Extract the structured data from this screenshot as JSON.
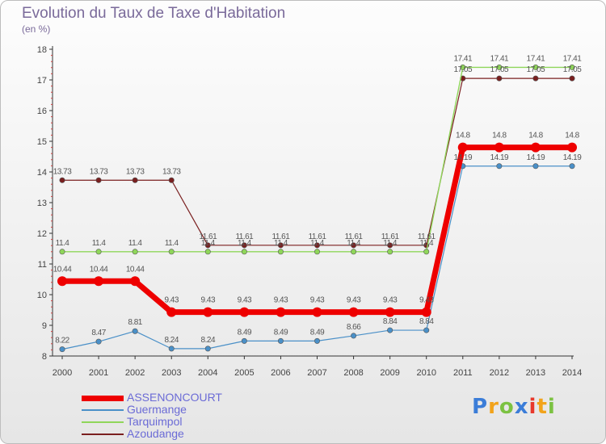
{
  "title": "Evolution du Taux de Taxe d'Habitation",
  "subtitle": "(en %)",
  "brand": {
    "letters": [
      "P",
      "r",
      "o",
      "x",
      "i",
      "t",
      "i"
    ],
    "colors": [
      "#3b7dd8",
      "#f2a31b",
      "#7cc242",
      "#3b7dd8",
      "#e8392c",
      "#f2a31b",
      "#7cc242"
    ]
  },
  "chart_data": {
    "type": "line",
    "x": [
      "2000",
      "2001",
      "2002",
      "2003",
      "2004",
      "2005",
      "2006",
      "2007",
      "2008",
      "2009",
      "2010",
      "2011",
      "2012",
      "2013",
      "2014"
    ],
    "ylim": [
      8,
      18
    ],
    "yticks": [
      "8",
      "9",
      "10",
      "11",
      "12",
      "13",
      "14",
      "15",
      "16",
      "17",
      "18"
    ],
    "grid": false,
    "legend_position": "bottom-left",
    "series": [
      {
        "name": "Azoudange",
        "color": "#7a1f1f",
        "width": 1.2,
        "marker": 3.2,
        "values": [
          13.73,
          13.73,
          13.73,
          13.73,
          11.61,
          11.61,
          11.61,
          11.61,
          11.61,
          11.61,
          11.61,
          17.05,
          17.05,
          17.05,
          17.05
        ],
        "labels": [
          "13.73",
          "13.73",
          "13.73",
          "13.73",
          "11.61",
          "11.61",
          "11.61",
          "11.61",
          "11.61",
          "11.61",
          "11.61",
          "17.05",
          "17.05",
          "17.05",
          "17.05"
        ]
      },
      {
        "name": "Tarquimpol",
        "color": "#8fd65a",
        "width": 1.4,
        "marker": 3.2,
        "values": [
          11.4,
          11.4,
          11.4,
          11.4,
          11.4,
          11.4,
          11.4,
          11.4,
          11.4,
          11.4,
          11.4,
          17.41,
          17.41,
          17.41,
          17.41
        ],
        "labels": [
          "11.4",
          "11.4",
          "11.4",
          "11.4",
          "11.4",
          "11.4",
          "11.4",
          "11.4",
          "11.4",
          "11.4",
          "11.4",
          "17.41",
          "17.41",
          "17.41",
          "17.41"
        ]
      },
      {
        "name": "Guermange",
        "color": "#4a90c8",
        "width": 1.2,
        "marker": 3.2,
        "values": [
          8.22,
          8.47,
          8.81,
          8.24,
          8.24,
          8.49,
          8.49,
          8.49,
          8.66,
          8.84,
          8.84,
          14.19,
          14.19,
          14.19,
          14.19
        ],
        "labels": [
          "8.22",
          "8.47",
          "8.81",
          "8.24",
          "8.24",
          "8.49",
          "8.49",
          "8.49",
          "8.66",
          "8.84",
          "8.84",
          "14.19",
          "14.19",
          "14.19",
          "14.19"
        ]
      },
      {
        "name": "ASSENONCOURT",
        "color": "#ee0000",
        "width": 7,
        "marker": 6,
        "values": [
          10.44,
          10.44,
          10.44,
          9.43,
          9.43,
          9.43,
          9.43,
          9.43,
          9.43,
          9.43,
          9.43,
          14.8,
          14.8,
          14.8,
          14.8
        ],
        "labels": [
          "10.44",
          "10.44",
          "10.44",
          "9.43",
          "9.43",
          "9.43",
          "9.43",
          "9.43",
          "9.43",
          "9.43",
          "9.43",
          "14.8",
          "14.8",
          "14.8",
          "14.8"
        ]
      }
    ],
    "legend": [
      {
        "name": "ASSENONCOURT",
        "color": "#ee0000",
        "width": 7
      },
      {
        "name": "Guermange",
        "color": "#4a90c8",
        "width": 2
      },
      {
        "name": "Tarquimpol",
        "color": "#8fd65a",
        "width": 2
      },
      {
        "name": "Azoudange",
        "color": "#7a1f1f",
        "width": 2
      }
    ]
  }
}
